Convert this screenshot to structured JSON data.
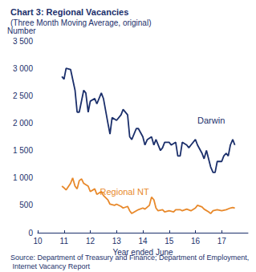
{
  "chart_data": {
    "type": "line",
    "title": "Chart 3: Regional Vacancies",
    "subtitle": "(Three Month Moving Average, original)",
    "y_label": "Number",
    "x_label": "Year ended June",
    "source": "Source: Department of Treasury and Finance; Department of Employment, Internet Vacancy Report",
    "xlim": [
      10,
      18
    ],
    "xticks": [
      10,
      11,
      12,
      13,
      14,
      15,
      16,
      17
    ],
    "ylim": [
      0,
      3500
    ],
    "yticks": [
      0,
      500,
      {
        "value": 1000,
        "label": "1 000"
      },
      {
        "value": 1500,
        "label": "1 500"
      },
      {
        "value": 2000,
        "label": "2 000"
      },
      {
        "value": 2500,
        "label": "2 500"
      },
      {
        "value": 3000,
        "label": "3 000"
      },
      {
        "value": 3500,
        "label": "3 500"
      }
    ],
    "grid": false,
    "series": [
      {
        "name": "Darwin",
        "color": "#1b2f6b",
        "x": [
          10.92,
          11.0,
          11.08,
          11.25,
          11.42,
          11.5,
          11.58,
          11.75,
          11.83,
          11.92,
          12.0,
          12.17,
          12.25,
          12.42,
          12.5,
          12.67,
          12.75,
          12.83,
          13.0,
          13.17,
          13.25,
          13.42,
          13.5,
          13.58,
          13.75,
          13.83,
          14.0,
          14.08,
          14.17,
          14.33,
          14.42,
          14.5,
          14.67,
          14.75,
          14.83,
          15.0,
          15.08,
          15.25,
          15.33,
          15.42,
          15.5,
          15.67,
          15.75,
          15.83,
          16.0,
          16.08,
          16.25,
          16.33,
          16.42,
          16.58,
          16.67,
          16.75,
          16.83,
          17.0,
          17.08,
          17.17,
          17.25,
          17.33,
          17.42,
          17.5
        ],
        "values": [
          2850,
          2800,
          3000,
          2980,
          2600,
          2200,
          2200,
          2600,
          2550,
          2200,
          2400,
          2450,
          2350,
          2550,
          2450,
          2000,
          1800,
          2100,
          2050,
          2150,
          2250,
          2150,
          1750,
          1700,
          1900,
          1900,
          1750,
          1600,
          1700,
          1750,
          1600,
          1700,
          1500,
          1550,
          1650,
          1650,
          1600,
          1650,
          1400,
          1400,
          1650,
          1600,
          1550,
          1600,
          1700,
          1600,
          1450,
          1350,
          1500,
          1200,
          1100,
          1100,
          1300,
          1300,
          1400,
          1450,
          1400,
          1600,
          1700,
          1600
        ]
      },
      {
        "name": "Regional NT",
        "color": "#e8892b",
        "x": [
          10.92,
          11.0,
          11.08,
          11.25,
          11.33,
          11.42,
          11.5,
          11.58,
          11.67,
          11.75,
          11.92,
          12.0,
          12.17,
          12.25,
          12.42,
          12.5,
          12.67,
          12.75,
          12.92,
          13.0,
          13.17,
          13.25,
          13.42,
          13.5,
          13.58,
          13.75,
          13.83,
          14.0,
          14.08,
          14.25,
          14.33,
          14.42,
          14.5,
          14.58,
          14.75,
          14.83,
          15.0,
          15.17,
          15.25,
          15.42,
          15.5,
          15.67,
          15.83,
          16.0,
          16.08,
          16.25,
          16.33,
          16.5,
          16.58,
          16.67,
          16.83,
          17.0,
          17.17,
          17.33,
          17.42,
          17.5
        ],
        "values": [
          850,
          820,
          780,
          900,
          1000,
          850,
          800,
          950,
          980,
          900,
          850,
          750,
          800,
          700,
          750,
          680,
          600,
          520,
          500,
          520,
          480,
          450,
          480,
          400,
          350,
          400,
          420,
          450,
          430,
          500,
          650,
          600,
          450,
          400,
          420,
          380,
          400,
          380,
          420,
          420,
          400,
          430,
          400,
          450,
          500,
          470,
          430,
          380,
          350,
          400,
          420,
          400,
          420,
          450,
          460,
          450
        ]
      }
    ],
    "annotations": [
      {
        "text": "Darwin",
        "x": 16.6,
        "y": 2050,
        "color": "#1b2f6b"
      },
      {
        "text": "Regional NT",
        "x": 13.3,
        "y": 750,
        "color": "#e8892b"
      }
    ]
  }
}
